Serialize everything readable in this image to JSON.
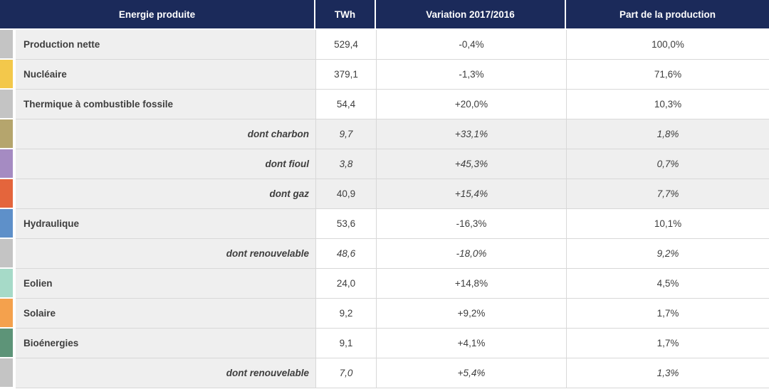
{
  "chart_data": {
    "type": "table",
    "columns": [
      "Energie produite",
      "TWh",
      "Variation 2017/2016",
      "Part de la production"
    ],
    "rows": [
      {
        "label": "Production nette",
        "twh": "529,4",
        "variation": "-0,4%",
        "part": "100,0%",
        "chip_color": "#c4c4c4",
        "sub": false
      },
      {
        "label": "Nucléaire",
        "twh": "379,1",
        "variation": "-1,3%",
        "part": "71,6%",
        "chip_color": "#f3c84b",
        "sub": false
      },
      {
        "label": "Thermique à combustible fossile",
        "twh": "54,4",
        "variation": "+20,0%",
        "part": "10,3%",
        "chip_color": "#c4c4c4",
        "sub": false
      },
      {
        "label": "dont charbon",
        "twh": "9,7",
        "variation": "+33,1%",
        "part": "1,8%",
        "chip_color": "#b5a56d",
        "sub": true
      },
      {
        "label": "dont fioul",
        "twh": "3,8",
        "variation": "+45,3%",
        "part": "0,7%",
        "chip_color": "#a58bc2",
        "sub": true
      },
      {
        "label": "dont gaz",
        "twh": "40,9",
        "variation": "+15,4%",
        "part": "7,7%",
        "chip_color": "#e4653c",
        "sub": true
      },
      {
        "label": "Hydraulique",
        "twh": "53,6",
        "variation": "-16,3%",
        "part": "10,1%",
        "chip_color": "#5e90c9",
        "sub": false
      },
      {
        "label": "dont renouvelable",
        "twh": "48,6",
        "variation": "-18,0%",
        "part": "9,2%",
        "chip_color": "#c4c4c4",
        "sub": true
      },
      {
        "label": "Eolien",
        "twh": "24,0",
        "variation": "+14,8%",
        "part": "4,5%",
        "chip_color": "#a6dac8",
        "sub": false
      },
      {
        "label": "Solaire",
        "twh": "9,2",
        "variation": "+9,2%",
        "part": "1,7%",
        "chip_color": "#f4a14d",
        "sub": false
      },
      {
        "label": "Bioénergies",
        "twh": "9,1",
        "variation": "+4,1%",
        "part": "1,7%",
        "chip_color": "#5d9478",
        "sub": false
      },
      {
        "label": "dont renouvelable",
        "twh": "7,0",
        "variation": "+5,4%",
        "part": "1,3%",
        "chip_color": "#c4c4c4",
        "sub": true
      }
    ],
    "layout": {
      "legend": "off",
      "grid": "on"
    },
    "colors": {
      "header_bg": "#1b2a5a",
      "header_text": "#ffffff",
      "body_text": "#3e3e3e",
      "label_column_bg": "#efefef",
      "shaded_row_bg": "#efefef",
      "grid_line": "#d8d8d8"
    }
  }
}
